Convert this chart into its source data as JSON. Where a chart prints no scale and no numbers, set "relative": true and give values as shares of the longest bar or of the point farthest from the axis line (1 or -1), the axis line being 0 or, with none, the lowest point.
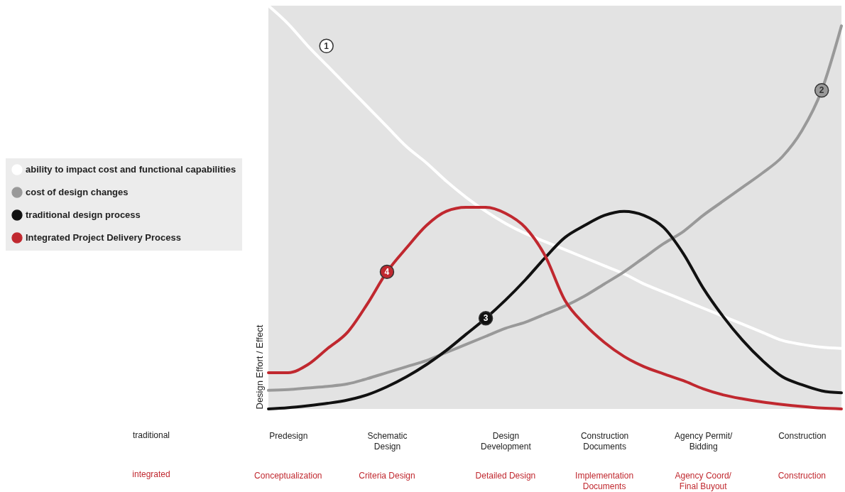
{
  "chart_data": {
    "type": "line",
    "relative": true,
    "ylabel": "Design Effort / Effect",
    "categories": [
      null,
      "Predesign",
      null,
      null,
      null,
      null,
      "Schematic\nDesign",
      null,
      null,
      null,
      null,
      null,
      "Design\nDevelopment",
      null,
      null,
      null,
      null,
      "Construction\nDocuments",
      null,
      null,
      null,
      null,
      "Agency Permit/\nBidding",
      null,
      null,
      null,
      null,
      "Construction",
      null,
      null
    ],
    "series": [
      {
        "name": "ability to impact cost and functional capabilities",
        "color": "#ffffff",
        "values": [
          1.0,
          0.955,
          0.9,
          0.85,
          0.8,
          0.75,
          0.7,
          0.65,
          0.61,
          0.565,
          0.525,
          0.49,
          0.46,
          0.435,
          0.415,
          0.395,
          0.375,
          0.355,
          0.335,
          0.31,
          0.29,
          0.27,
          0.25,
          0.23,
          0.21,
          0.19,
          0.17,
          0.16,
          0.153,
          0.15
        ]
      },
      {
        "name": "cost of design changes",
        "color": "#999999",
        "values": [
          0.046,
          0.048,
          0.052,
          0.056,
          0.062,
          0.075,
          0.09,
          0.105,
          0.12,
          0.14,
          0.16,
          0.18,
          0.2,
          0.215,
          0.235,
          0.255,
          0.28,
          0.31,
          0.34,
          0.375,
          0.41,
          0.44,
          0.48,
          0.515,
          0.55,
          0.585,
          0.625,
          0.69,
          0.79,
          0.95
        ]
      },
      {
        "name": "traditional design process",
        "color": "#111111",
        "values": [
          0,
          0.003,
          0.008,
          0.014,
          0.022,
          0.035,
          0.055,
          0.08,
          0.11,
          0.145,
          0.185,
          0.225,
          0.27,
          0.32,
          0.375,
          0.425,
          0.455,
          0.48,
          0.49,
          0.48,
          0.45,
          0.385,
          0.3,
          0.23,
          0.17,
          0.12,
          0.08,
          0.06,
          0.045,
          0.04
        ]
      },
      {
        "name": "Integrated Project Delivery Process",
        "color": "#c0282f",
        "values": [
          0.09,
          0.09,
          0.11,
          0.15,
          0.19,
          0.26,
          0.34,
          0.4,
          0.455,
          0.49,
          0.5,
          0.5,
          0.485,
          0.45,
          0.38,
          0.27,
          0.21,
          0.165,
          0.13,
          0.105,
          0.087,
          0.07,
          0.05,
          0.035,
          0.025,
          0.017,
          0.011,
          0.006,
          0.002,
          0
        ]
      }
    ],
    "annotations": [
      "traditional",
      "integrated",
      "Conceptualization",
      "Criteria Design",
      "Detailed Design",
      "Implementation\nDocuments",
      "Agency Coord/\nFinal Buyout",
      "Construction",
      "1",
      "2",
      "3",
      "4"
    ],
    "legend": "left"
  }
}
